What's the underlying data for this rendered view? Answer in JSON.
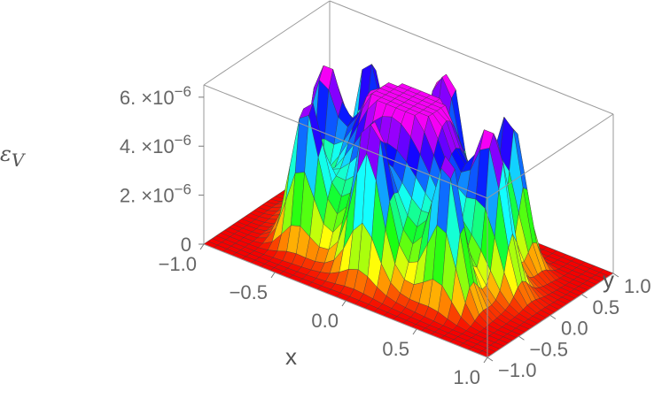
{
  "chart_data": {
    "type": "surface3d",
    "title": "",
    "xlabel": "x",
    "ylabel": "y",
    "zlabel_main": "ε",
    "zlabel_sub": "V",
    "xlim": [
      -1.0,
      1.0
    ],
    "ylim": [
      -1.0,
      1.0
    ],
    "zlim": [
      0,
      6.5e-06
    ],
    "x_ticks": [
      "−1.0",
      "−0.5",
      "0.0",
      "0.5",
      "1.0"
    ],
    "y_ticks": [
      "−1.0",
      "−0.5",
      "0.0",
      "0.5",
      "1.0"
    ],
    "z_ticks": [
      {
        "mant": "0",
        "exp": ""
      },
      {
        "mant": "2. ×10",
        "exp": "−6"
      },
      {
        "mant": "4. ×10",
        "exp": "−6"
      },
      {
        "mant": "6. ×10",
        "exp": "−6"
      }
    ],
    "colormap": "rainbow (red low → yellow → green → cyan → blue → magenta high)",
    "peaks": [
      {
        "x": 0.0,
        "y": 0.0,
        "z": 6e-06
      },
      {
        "x": -0.5,
        "y": -0.5,
        "z": 5.5e-06
      },
      {
        "x": 0.5,
        "y": 0.5,
        "z": 5.5e-06
      },
      {
        "x": -0.5,
        "y": 0.5,
        "z": 5.5e-06
      },
      {
        "x": 0.5,
        "y": -0.5,
        "z": 5.5e-06
      },
      {
        "x": 0.0,
        "y": 0.6,
        "z": 5.5e-06
      },
      {
        "x": 0.0,
        "y": -0.6,
        "z": 5.5e-06
      },
      {
        "x": 0.6,
        "y": 0.0,
        "z": 5.5e-06
      },
      {
        "x": -0.6,
        "y": 0.0,
        "z": 5.5e-06
      }
    ],
    "grid_mesh": true,
    "box": true
  }
}
